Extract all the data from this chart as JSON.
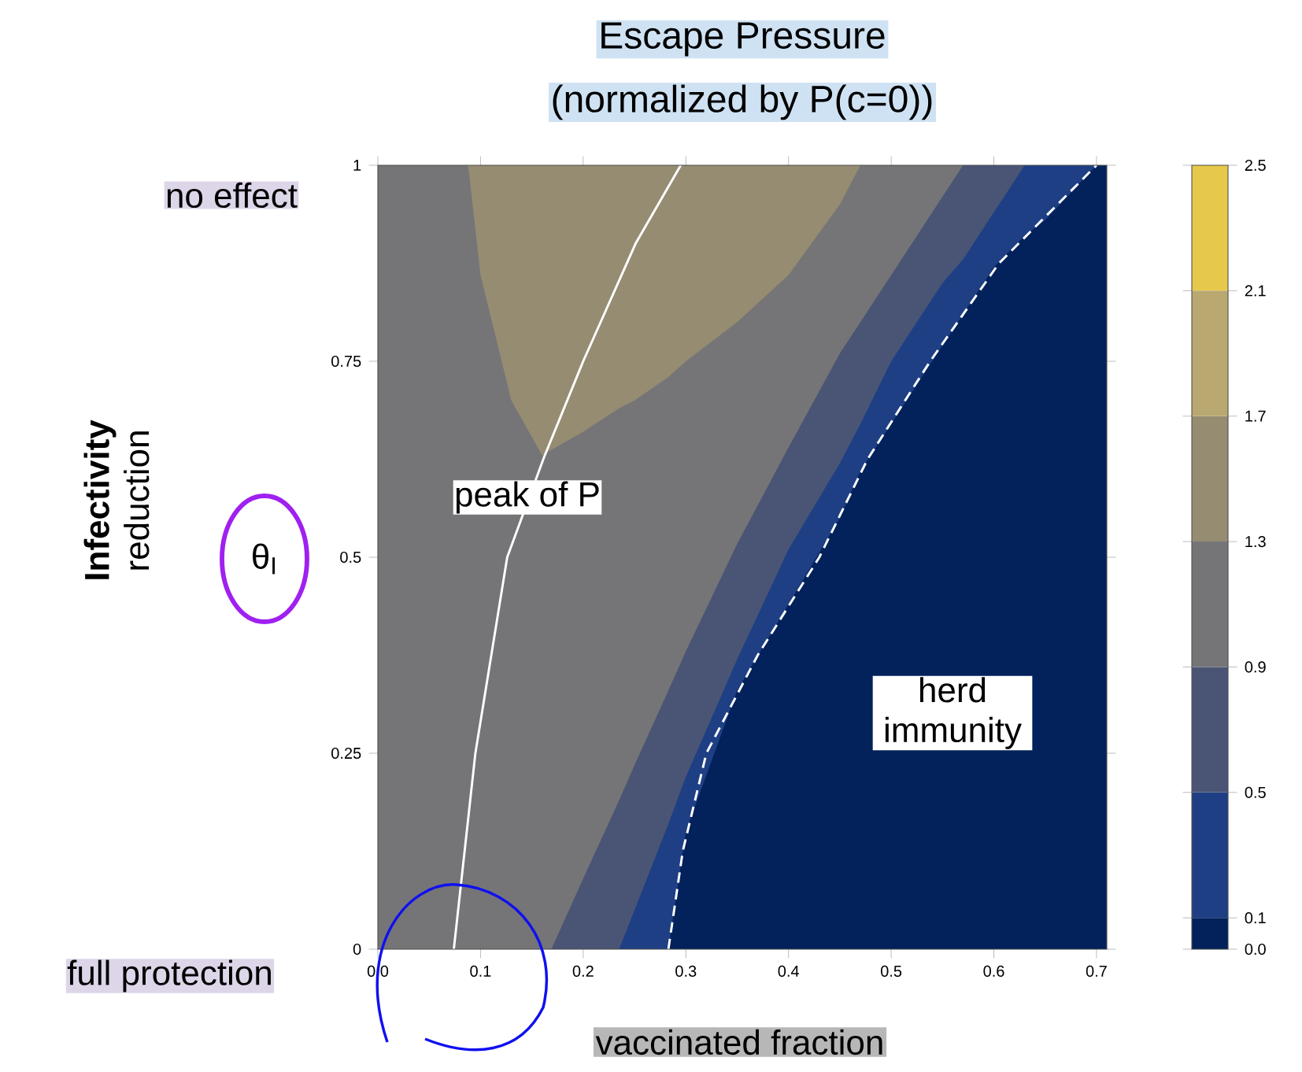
{
  "chart_data": {
    "type": "area",
    "title": "Escape Pressure",
    "subtitle": "(normalized by P(c=0))",
    "xlabel": "vaccinated fraction",
    "clim": [
      0,
      2.5
    ],
    "cticks": [
      {
        "value": 0,
        "label": "0.0"
      },
      0.1,
      0.5,
      0.9,
      1.3,
      1.7,
      2.1,
      2.5
    ],
    "xlim": [
      0,
      0.71
    ],
    "ylim": [
      0,
      1
    ],
    "xticks": [
      {
        "value": 0,
        "label": "0.0"
      },
      0.1,
      0.2,
      0.3,
      0.4,
      0.5,
      0.6,
      0.7
    ],
    "yticks": [
      0,
      0.25,
      0.5,
      0.75,
      1
    ],
    "series": [
      {
        "type": "area",
        "color": "#958c72",
        "x": [
          0.088,
          0.1,
          0.13,
          0.16,
          0.169,
          0.2,
          0.235,
          0.25,
          0.283,
          0.3,
          0.35,
          0.4,
          0.45,
          0.47
        ],
        "values": [
          1,
          1,
          1,
          1,
          1,
          1,
          1,
          1,
          1,
          1,
          1,
          1,
          1,
          1
        ]
      },
      {
        "type": "area",
        "color": "#757577",
        "x": [
          0,
          0.05,
          0.088,
          0.1,
          0.13,
          0.16,
          0.169,
          0.2,
          0.235,
          0.25,
          0.283,
          0.3,
          0.35,
          0.4,
          0.45,
          0.47,
          0.5,
          0.55,
          0.57
        ],
        "values": [
          1,
          1,
          1,
          0.86,
          0.7,
          0.63,
          0.637,
          0.66,
          0.69,
          0.7,
          0.73,
          0.75,
          0.8,
          0.86,
          0.95,
          1,
          1,
          1,
          1
        ]
      },
      {
        "type": "area",
        "color": "#4a5575",
        "x": [
          0.169,
          0.2,
          0.235,
          0.25,
          0.283,
          0.3,
          0.35,
          0.4,
          0.45,
          0.47,
          0.5,
          0.55,
          0.57,
          0.6,
          0.63
        ],
        "values": [
          0,
          0.09,
          0.19,
          0.235,
          0.33,
          0.38,
          0.517,
          0.64,
          0.76,
          0.8,
          0.86,
          0.96,
          1,
          1,
          1
        ]
      },
      {
        "type": "area",
        "color": "#1e3f84",
        "x": [
          0.235,
          0.25,
          0.283,
          0.3,
          0.35,
          0.4,
          0.45,
          0.47,
          0.5,
          0.55,
          0.57,
          0.6,
          0.63,
          0.65,
          0.7
        ],
        "values": [
          0,
          0.05,
          0.16,
          0.22,
          0.37,
          0.51,
          0.62,
          0.67,
          0.75,
          0.85,
          0.88,
          0.94,
          1,
          1,
          1
        ]
      },
      {
        "type": "area",
        "color": "#03215a",
        "x": [
          0.283,
          0.3,
          0.35,
          0.4,
          0.45,
          0.47,
          0.5,
          0.55,
          0.57,
          0.6,
          0.63,
          0.65,
          0.7,
          0.71
        ],
        "values": [
          0,
          0.15,
          0.33,
          0.44,
          0.55,
          0.61,
          0.67,
          0.77,
          0.81,
          0.87,
          0.91,
          0.93,
          1,
          1
        ]
      },
      {
        "type": "line",
        "color": "#ffffff",
        "x": [
          0.074,
          0.095,
          0.126,
          0.162,
          0.2,
          0.251,
          0.295
        ],
        "values": [
          0,
          0.25,
          0.5,
          0.628,
          0.75,
          0.9,
          1
        ]
      },
      {
        "type": "line",
        "color": "#ffffff",
        "line_style": "dashed",
        "x": [
          0.283,
          0.297,
          0.32,
          0.37,
          0.43,
          0.477,
          0.538,
          0.605,
          0.7
        ],
        "values": [
          0,
          0.125,
          0.25,
          0.375,
          0.5,
          0.625,
          0.75,
          0.875,
          1
        ]
      }
    ],
    "annotations": [
      "no effect",
      "full protection",
      "**Infectivity** reduction",
      "θ$_{I}$",
      "peak of P",
      "herd immunity"
    ]
  }
}
